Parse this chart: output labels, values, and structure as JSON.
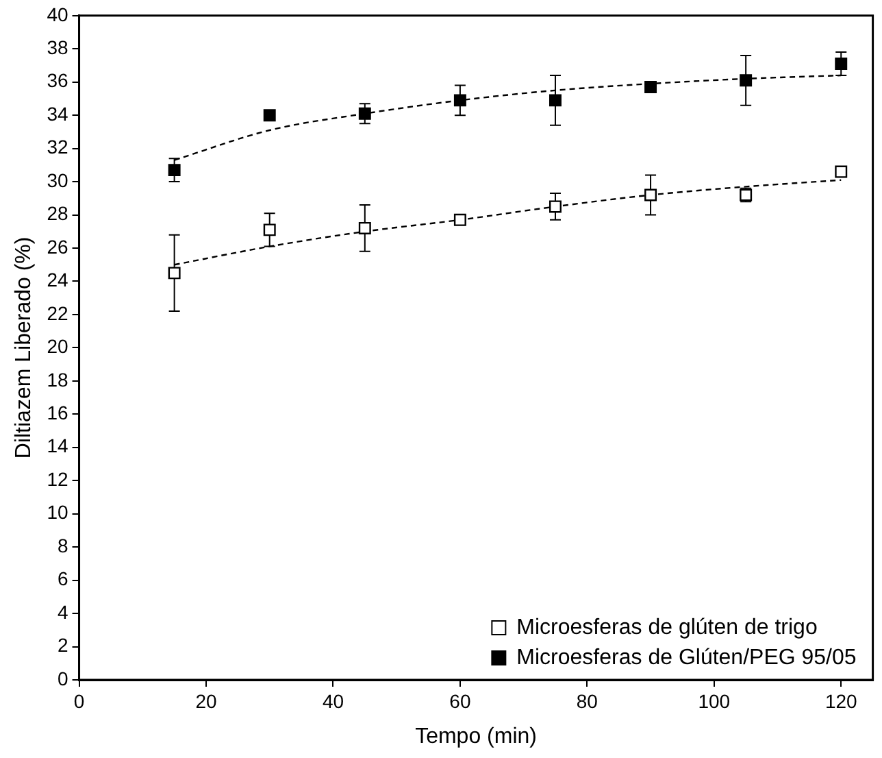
{
  "chart_data": {
    "type": "scatter",
    "xlabel": "Tempo (min)",
    "ylabel": "Diltiazem Liberado (%)",
    "xlim": [
      0,
      125
    ],
    "xticks": [
      0,
      20,
      40,
      60,
      80,
      100,
      120
    ],
    "ylim": [
      0,
      40
    ],
    "yticks": [
      0,
      2,
      4,
      6,
      8,
      10,
      12,
      14,
      16,
      18,
      20,
      22,
      24,
      26,
      28,
      30,
      32,
      34,
      36,
      38,
      40
    ],
    "grid": false,
    "legend": "bottom right",
    "marker": "square",
    "series": [
      {
        "name": "Microesferas de glúten de trigo",
        "color": "#ffffff",
        "x": [
          15,
          30,
          45,
          60,
          75,
          90,
          105,
          120
        ],
        "values": [
          24.5,
          27.1,
          27.2,
          27.7,
          28.5,
          29.2,
          29.2,
          30.6
        ],
        "errors": [
          2.3,
          1.0,
          1.4,
          null,
          0.8,
          1.2,
          0.4,
          null
        ]
      },
      {
        "name": "Microesferas de Glúten/PEG 95/05",
        "color": "#000000",
        "x": [
          15,
          30,
          45,
          60,
          75,
          90,
          105,
          120
        ],
        "values": [
          30.7,
          34.0,
          34.1,
          34.9,
          34.9,
          35.7,
          36.1,
          37.1
        ],
        "errors": [
          0.7,
          null,
          0.6,
          0.9,
          1.5,
          null,
          1.5,
          0.7
        ]
      },
      {
        "type": "line",
        "color": "#000000",
        "line_style": "dashed",
        "marker": "none",
        "x": [
          15,
          30,
          45,
          60,
          75,
          90,
          105,
          120
        ],
        "values": [
          25.0,
          26.1,
          27.0,
          27.7,
          28.5,
          29.2,
          29.7,
          30.1
        ]
      },
      {
        "type": "line",
        "color": "#000000",
        "line_style": "dashed",
        "marker": "none",
        "x": [
          15,
          30,
          45,
          60,
          75,
          90,
          105,
          120
        ],
        "values": [
          31.3,
          33.1,
          34.1,
          34.9,
          35.5,
          35.9,
          36.2,
          36.4
        ]
      }
    ]
  }
}
